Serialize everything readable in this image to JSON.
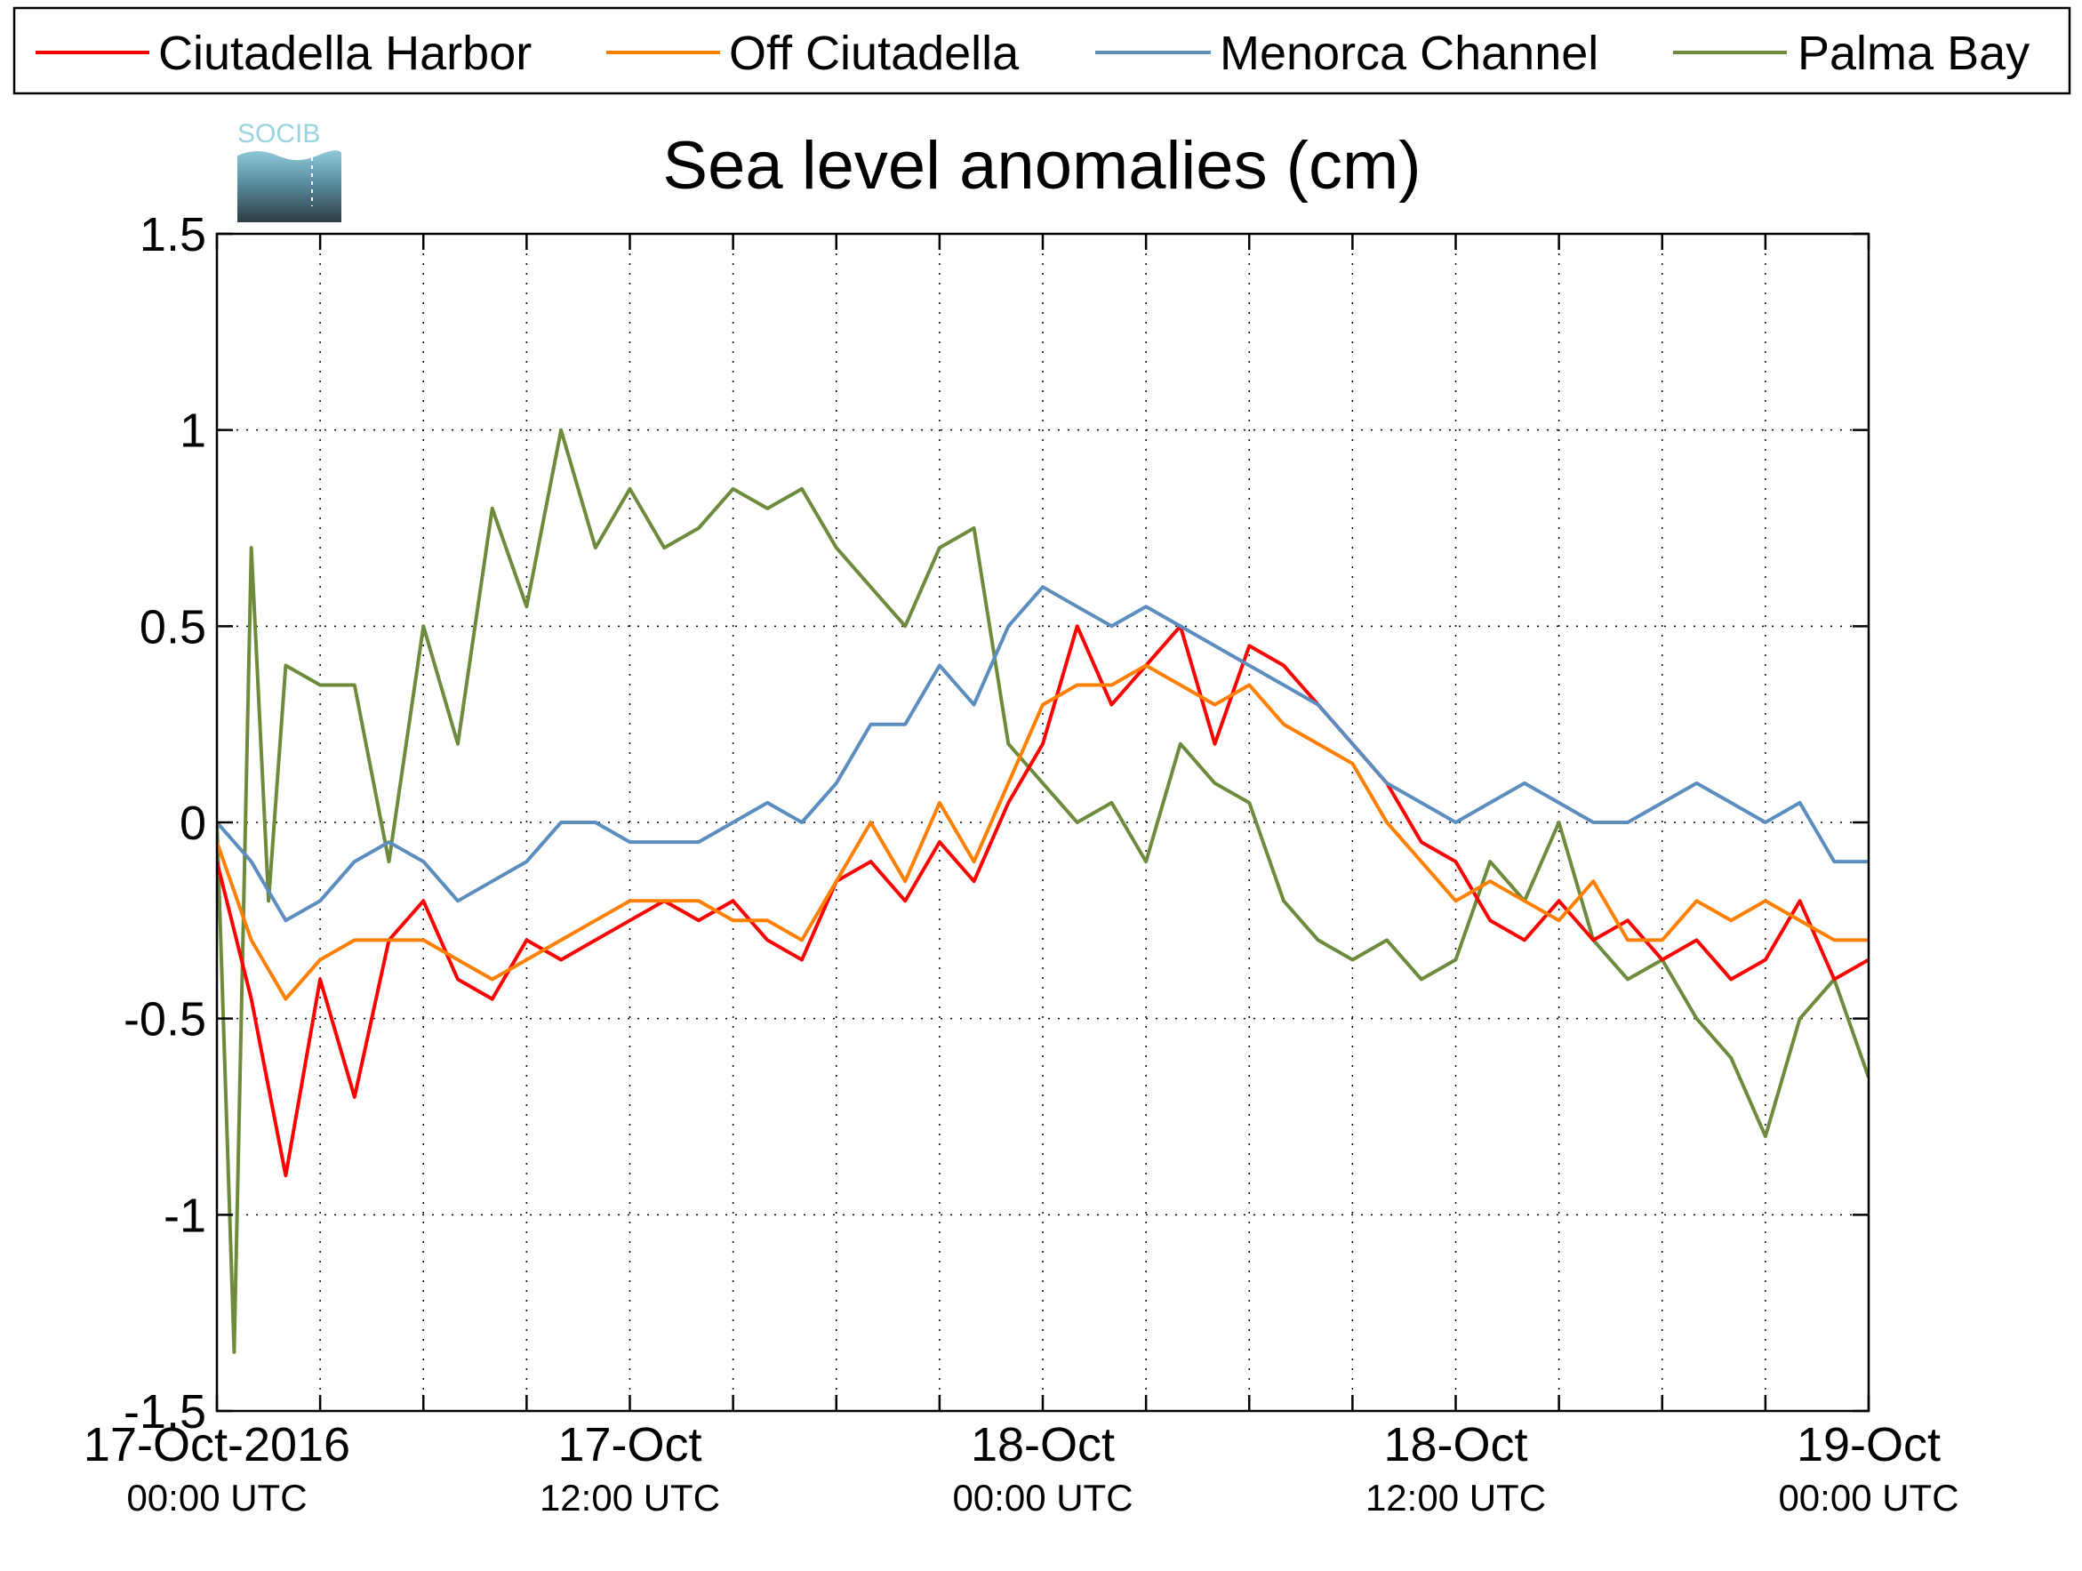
{
  "chart_data": {
    "type": "line",
    "title": "Sea level anomalies (cm)",
    "logo_text": "SOCIB",
    "xlabel": "",
    "ylabel": "",
    "ylim": [
      -1.5,
      1.5
    ],
    "xlim_hours": [
      0,
      48
    ],
    "y_ticks": [
      "1.5",
      "1",
      "0.5",
      "0",
      "-0.5",
      "-1",
      "-1.5"
    ],
    "y_tick_values": [
      1.5,
      1,
      0.5,
      0,
      -0.5,
      -1,
      -1.5
    ],
    "x_ticks": [
      {
        "hour": 0,
        "label": "17-Oct-2016",
        "sublabel": "00:00 UTC"
      },
      {
        "hour": 12,
        "label": "17-Oct",
        "sublabel": "12:00 UTC"
      },
      {
        "hour": 24,
        "label": "18-Oct",
        "sublabel": "00:00 UTC"
      },
      {
        "hour": 36,
        "label": "18-Oct",
        "sublabel": "12:00 UTC"
      },
      {
        "hour": 48,
        "label": "19-Oct",
        "sublabel": "00:00 UTC"
      }
    ],
    "grid": true,
    "legend_position": "top",
    "series": [
      {
        "name": "Ciutadella Harbor",
        "color": "#ff0000",
        "x": [
          0.0,
          1.0,
          2.0,
          3.0,
          4.0,
          5.0,
          6.0,
          7.0,
          8.0,
          9.0,
          10.0,
          11.0,
          12.0,
          13.0,
          14.0,
          15.0,
          16.0,
          17.0,
          18.0,
          19.0,
          20.0,
          21.0,
          22.0,
          23.0,
          24.0,
          25.0,
          26.0,
          27.0,
          28.0,
          29.0,
          30.0,
          31.0,
          32.0,
          33.0,
          34.0,
          35.0,
          36.0,
          37.0,
          38.0,
          39.0,
          40.0,
          41.0,
          42.0,
          43.0,
          44.0,
          45.0,
          46.0,
          47.0,
          48.0
        ],
        "y": [
          -0.1,
          -0.45,
          -0.9,
          -0.4,
          -0.7,
          -0.3,
          -0.2,
          -0.4,
          -0.45,
          -0.3,
          -0.35,
          -0.3,
          -0.25,
          -0.2,
          -0.25,
          -0.2,
          -0.3,
          -0.35,
          -0.15,
          -0.1,
          -0.2,
          -0.05,
          -0.15,
          0.05,
          0.2,
          0.5,
          0.3,
          0.4,
          0.5,
          0.2,
          0.45,
          0.4,
          0.3,
          0.2,
          0.1,
          -0.05,
          -0.1,
          -0.25,
          -0.3,
          -0.2,
          -0.3,
          -0.25,
          -0.35,
          -0.3,
          -0.4,
          -0.35,
          -0.2,
          -0.4,
          -0.35
        ]
      },
      {
        "name": "Off Ciutadella",
        "color": "#ff8000",
        "x": [
          0.0,
          1.0,
          2.0,
          3.0,
          4.0,
          5.0,
          6.0,
          7.0,
          8.0,
          9.0,
          10.0,
          11.0,
          12.0,
          13.0,
          14.0,
          15.0,
          16.0,
          17.0,
          18.0,
          19.0,
          20.0,
          21.0,
          22.0,
          23.0,
          24.0,
          25.0,
          26.0,
          27.0,
          28.0,
          29.0,
          30.0,
          31.0,
          32.0,
          33.0,
          34.0,
          35.0,
          36.0,
          37.0,
          38.0,
          39.0,
          40.0,
          41.0,
          42.0,
          43.0,
          44.0,
          45.0,
          46.0,
          47.0,
          48.0
        ],
        "y": [
          -0.05,
          -0.3,
          -0.45,
          -0.35,
          -0.3,
          -0.3,
          -0.3,
          -0.35,
          -0.4,
          -0.35,
          -0.3,
          -0.25,
          -0.2,
          -0.2,
          -0.2,
          -0.25,
          -0.25,
          -0.3,
          -0.15,
          0.0,
          -0.15,
          0.05,
          -0.1,
          0.1,
          0.3,
          0.35,
          0.35,
          0.4,
          0.35,
          0.3,
          0.35,
          0.25,
          0.2,
          0.15,
          0.0,
          -0.1,
          -0.2,
          -0.15,
          -0.2,
          -0.25,
          -0.15,
          -0.3,
          -0.3,
          -0.2,
          -0.25,
          -0.2,
          -0.25,
          -0.3,
          -0.3
        ]
      },
      {
        "name": "Menorca Channel",
        "color": "#5b8dbf",
        "x": [
          0.0,
          1.0,
          2.0,
          3.0,
          4.0,
          5.0,
          6.0,
          7.0,
          8.0,
          9.0,
          10.0,
          11.0,
          12.0,
          13.0,
          14.0,
          15.0,
          16.0,
          17.0,
          18.0,
          19.0,
          20.0,
          21.0,
          22.0,
          23.0,
          24.0,
          25.0,
          26.0,
          27.0,
          28.0,
          29.0,
          30.0,
          31.0,
          32.0,
          33.0,
          34.0,
          35.0,
          36.0,
          37.0,
          38.0,
          39.0,
          40.0,
          41.0,
          42.0,
          43.0,
          44.0,
          45.0,
          46.0,
          47.0,
          48.0
        ],
        "y": [
          0.0,
          -0.1,
          -0.25,
          -0.2,
          -0.1,
          -0.05,
          -0.1,
          -0.2,
          -0.15,
          -0.1,
          0.0,
          0.0,
          -0.05,
          -0.05,
          -0.05,
          0.0,
          0.05,
          0.0,
          0.1,
          0.25,
          0.25,
          0.4,
          0.3,
          0.5,
          0.6,
          0.55,
          0.5,
          0.55,
          0.5,
          0.45,
          0.4,
          0.35,
          0.3,
          0.2,
          0.1,
          0.05,
          0.0,
          0.05,
          0.1,
          0.05,
          0.0,
          0.0,
          0.05,
          0.1,
          0.05,
          0.0,
          0.05,
          -0.1,
          -0.1
        ]
      },
      {
        "name": "Palma Bay",
        "color": "#6e8b3d",
        "x": [
          0.0,
          0.5,
          1.0,
          1.5,
          2.0,
          3.0,
          4.0,
          5.0,
          6.0,
          7.0,
          8.0,
          9.0,
          10.0,
          11.0,
          12.0,
          13.0,
          14.0,
          15.0,
          16.0,
          17.0,
          18.0,
          19.0,
          20.0,
          21.0,
          22.0,
          23.0,
          24.0,
          25.0,
          26.0,
          27.0,
          28.0,
          29.0,
          30.0,
          31.0,
          32.0,
          33.0,
          34.0,
          35.0,
          36.0,
          37.0,
          38.0,
          39.0,
          40.0,
          41.0,
          42.0,
          43.0,
          44.0,
          45.0,
          46.0,
          47.0,
          48.0
        ],
        "y": [
          0.0,
          -1.35,
          0.7,
          -0.2,
          0.4,
          0.35,
          0.35,
          -0.1,
          0.5,
          0.2,
          0.8,
          0.55,
          1.0,
          0.7,
          0.85,
          0.7,
          0.75,
          0.85,
          0.8,
          0.85,
          0.7,
          0.6,
          0.5,
          0.7,
          0.75,
          0.2,
          0.1,
          0.0,
          0.05,
          -0.1,
          0.2,
          0.1,
          0.05,
          -0.2,
          -0.3,
          -0.35,
          -0.3,
          -0.4,
          -0.35,
          -0.1,
          -0.2,
          0.0,
          -0.3,
          -0.4,
          -0.35,
          -0.5,
          -0.6,
          -0.8,
          -0.5,
          -0.4,
          -0.65
        ]
      }
    ]
  }
}
